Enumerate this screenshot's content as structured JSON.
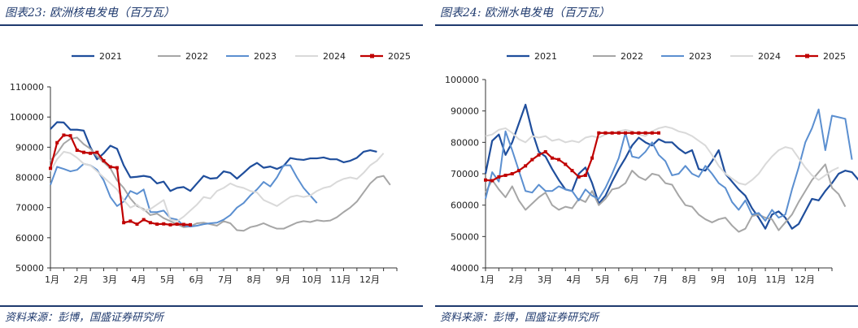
{
  "chart_data": [
    {
      "type": "line",
      "title": "图表23: 欧洲核电发电（百万瓦）",
      "source": "资料来源：彭博，国盛证券研究所",
      "ylim": [
        50000,
        110000
      ],
      "yticks": [
        "110000",
        "100000",
        "90000",
        "80000",
        "70000",
        "60000",
        "50000"
      ],
      "xlim": [
        0,
        52
      ],
      "xticks": [
        "1月",
        "2月",
        "3月",
        "4月",
        "5月",
        "6月",
        "7月",
        "8月",
        "9月",
        "10月",
        "11月",
        "12月"
      ],
      "legend_position": "top",
      "grid": false,
      "series": [
        {
          "name": "2021",
          "color": "#1f4e9c",
          "width": 2.2,
          "values": [
            96000,
            98300,
            98200,
            95800,
            95800,
            95500,
            90000,
            86000,
            88000,
            90500,
            89500,
            84000,
            80000,
            80200,
            80500,
            80100,
            78000,
            78600,
            75500,
            76500,
            76800,
            75500,
            78000,
            80500,
            79600,
            79800,
            82000,
            81500,
            79600,
            81500,
            83500,
            84800,
            83200,
            83600,
            82800,
            83800,
            86400,
            86000,
            85800,
            86300,
            86300,
            86600,
            86000,
            86000,
            85000,
            85500,
            86500,
            88500,
            89000,
            88500
          ]
        },
        {
          "name": "2022",
          "color": "#a6a6a6",
          "width": 2,
          "values": [
            85500,
            88000,
            91200,
            92800,
            93200,
            91000,
            89500,
            87000,
            85000,
            83000,
            79000,
            76500,
            73000,
            70500,
            69500,
            67500,
            68000,
            66500,
            65500,
            64500,
            63500,
            63800,
            64800,
            65000,
            64500,
            64000,
            65500,
            64800,
            62500,
            62300,
            63500,
            64000,
            64800,
            63800,
            63000,
            63000,
            64000,
            65000,
            65500,
            65200,
            65800,
            65500,
            65700,
            66800,
            68500,
            70000,
            72000,
            75000,
            78000,
            80000,
            80500,
            77500
          ]
        },
        {
          "name": "2023",
          "color": "#5b8fd0",
          "width": 2,
          "values": [
            77500,
            83500,
            82800,
            82000,
            82500,
            84500,
            84000,
            82500,
            79000,
            73500,
            70500,
            72000,
            75500,
            74500,
            76000,
            68500,
            68500,
            69000,
            66500,
            66000,
            64000,
            63700,
            64000,
            64500,
            64800,
            65000,
            66000,
            67500,
            70000,
            71500,
            74000,
            76000,
            78500,
            77000,
            80000,
            84000,
            84000,
            80000,
            76500,
            74000,
            71500
          ]
        },
        {
          "name": "2024",
          "color": "#d9d9d9",
          "width": 2,
          "values": [
            82000,
            86000,
            88500,
            88000,
            86500,
            84500,
            84000,
            82000,
            80000,
            78000,
            76000,
            72500,
            70000,
            71000,
            69000,
            69500,
            71000,
            72500,
            66000,
            65500,
            67000,
            69000,
            71000,
            73500,
            73000,
            75500,
            76500,
            78000,
            77000,
            76500,
            75500,
            75000,
            72500,
            71500,
            70500,
            72000,
            73500,
            74000,
            73500,
            74000,
            75500,
            76500,
            77000,
            78500,
            79500,
            80000,
            79500,
            81500,
            84000,
            85500,
            88000
          ]
        },
        {
          "name": "2025",
          "color": "#c00000",
          "width": 2.2,
          "values": [
            83000,
            91500,
            94000,
            93800,
            89000,
            88300,
            88000,
            88300,
            85500,
            83500,
            83200,
            65000,
            65500,
            64500,
            66000,
            65000,
            64500,
            64600,
            64300,
            64500,
            64400,
            64300
          ]
        }
      ]
    },
    {
      "type": "line",
      "title": "图表24: 欧洲水电发电（百万瓦）",
      "source": "资料来源：彭博，国盛证券研究所",
      "ylim": [
        40000,
        100000
      ],
      "yticks": [
        "100000",
        "90000",
        "80000",
        "70000",
        "60000",
        "50000",
        "40000"
      ],
      "xlim": [
        0,
        52
      ],
      "xticks": [
        "1月",
        "2月",
        "3月",
        "4月",
        "5月",
        "6月",
        "7月",
        "8月",
        "9月",
        "10月",
        "11月",
        "12月"
      ],
      "legend_position": "top",
      "grid": false,
      "series": [
        {
          "name": "2021",
          "color": "#1f4e9c",
          "width": 2.2,
          "values": [
            70000,
            80500,
            82500,
            76000,
            80000,
            86000,
            92000,
            83500,
            77000,
            75500,
            71500,
            68000,
            65000,
            64500,
            70000,
            72000,
            67000,
            60500,
            63000,
            67500,
            71500,
            75000,
            79000,
            81500,
            80000,
            79000,
            81000,
            80000,
            80000,
            78000,
            76500,
            77500,
            71500,
            71000,
            74000,
            77500,
            70000,
            67500,
            65000,
            63000,
            59000,
            56000,
            52500,
            57000,
            58000,
            56000,
            52500,
            54000,
            58000,
            62000,
            61500,
            64500,
            67000,
            70000,
            71000,
            70500,
            68000
          ]
        },
        {
          "name": "2022",
          "color": "#a6a6a6",
          "width": 2,
          "values": [
            64000,
            68000,
            65000,
            62500,
            66000,
            61500,
            58500,
            60500,
            62500,
            64000,
            60000,
            58500,
            59500,
            59000,
            62000,
            61000,
            64500,
            60000,
            62000,
            65000,
            65500,
            67000,
            71000,
            69000,
            68000,
            70000,
            69500,
            67000,
            66500,
            63000,
            60000,
            59500,
            57000,
            55500,
            54500,
            55500,
            56000,
            53500,
            51500,
            52500,
            56500,
            57000,
            56000,
            55500,
            52000,
            54500,
            57000,
            61000,
            64500,
            68000,
            70500,
            73000,
            65500,
            63500,
            59500
          ]
        },
        {
          "name": "2023",
          "color": "#5b8fd0",
          "width": 2,
          "values": [
            62000,
            70500,
            67500,
            83500,
            77500,
            71000,
            64500,
            64000,
            66500,
            64500,
            64500,
            66000,
            65000,
            64500,
            61500,
            65000,
            63000,
            62000,
            65500,
            70000,
            75000,
            83000,
            75500,
            75000,
            77000,
            80000,
            76000,
            74000,
            69500,
            70000,
            72500,
            70000,
            69000,
            72500,
            70000,
            67000,
            65500,
            61000,
            58500,
            61500,
            57000,
            57500,
            55000,
            58500,
            56000,
            57000,
            65000,
            72000,
            80000,
            84500,
            90500,
            77500,
            88500,
            88000,
            87500,
            74500
          ]
        },
        {
          "name": "2024",
          "color": "#d9d9d9",
          "width": 2,
          "values": [
            82000,
            82500,
            84000,
            84500,
            83000,
            81000,
            80000,
            82000,
            81500,
            82000,
            80500,
            81000,
            80000,
            80500,
            80000,
            81500,
            82000,
            81500,
            82500,
            83000,
            83500,
            84000,
            83500,
            82500,
            82000,
            83500,
            84500,
            85000,
            84500,
            83500,
            83000,
            82000,
            80500,
            79000,
            76000,
            72500,
            70000,
            68500,
            67000,
            66500,
            68000,
            70000,
            73000,
            75500,
            77500,
            78500,
            78000,
            75000,
            72000,
            69500,
            68000,
            69500,
            71000,
            72000
          ]
        },
        {
          "name": "2025",
          "color": "#c00000",
          "width": 2.2,
          "values": [
            68000,
            67800,
            69000,
            69500,
            70000,
            71000,
            72500,
            74500,
            76000,
            77000,
            75000,
            74500,
            73000,
            71000,
            69000,
            69500,
            75000,
            83000,
            83000,
            83000,
            83000,
            83000,
            83000,
            83000,
            83000,
            83000,
            83000
          ]
        }
      ]
    }
  ]
}
